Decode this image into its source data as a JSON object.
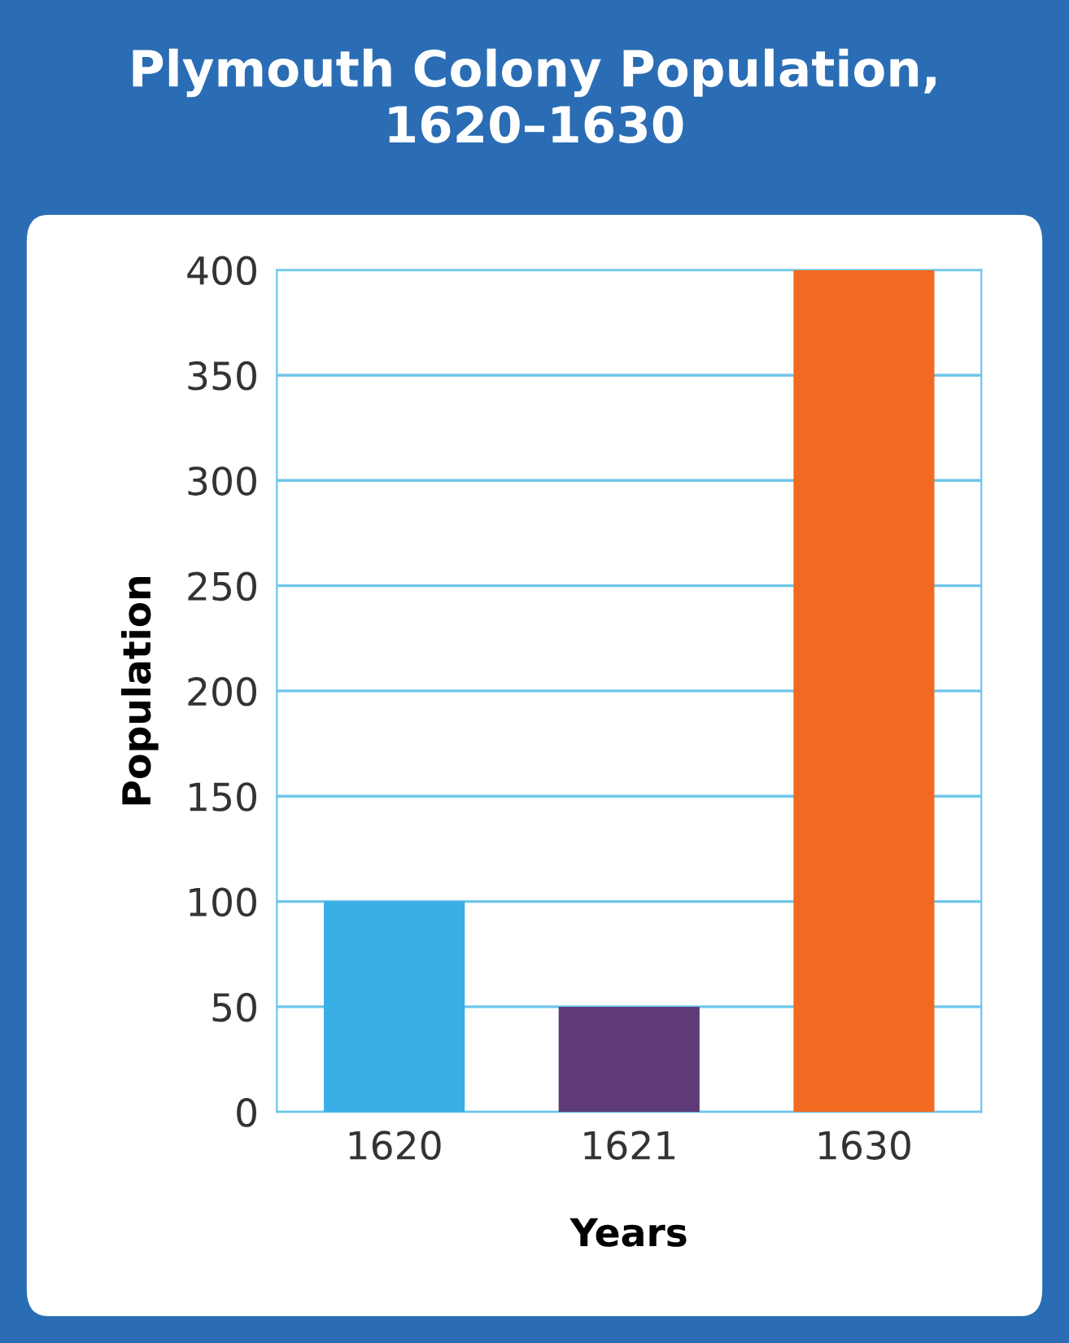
{
  "chart_data": {
    "type": "bar",
    "title": "Plymouth Colony Population,\n1620–1630",
    "xlabel": "Years",
    "ylabel": "Population",
    "categories": [
      "1620",
      "1621",
      "1630"
    ],
    "values": [
      100,
      50,
      400
    ],
    "colors": [
      "#3aaee6",
      "#5e3a78",
      "#f26a22"
    ],
    "ylim": [
      0,
      400
    ],
    "yticks": [
      0,
      50,
      100,
      150,
      200,
      250,
      300,
      350,
      400
    ],
    "grid": "y"
  }
}
